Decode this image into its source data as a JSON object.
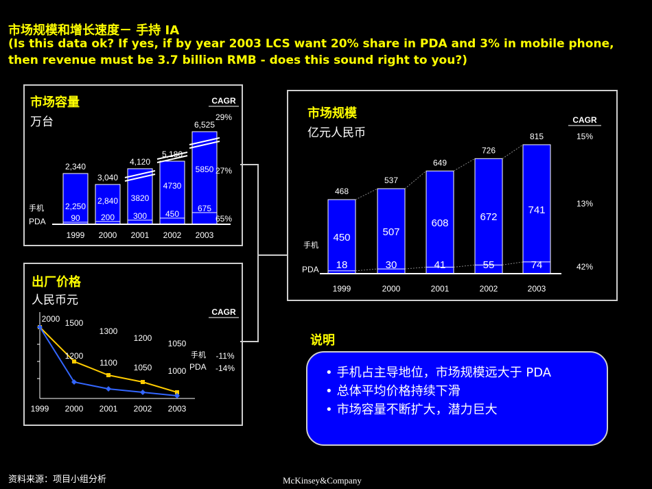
{
  "header": {
    "title": "市场规模和增长速度－ 手持 IA",
    "question": "(Is this data ok? If yes, if by year 2003 LCS want 20% share in PDA and 3% in mobile phone, then revenue must be 3.7 billion RMB - does this sound right to you?)"
  },
  "colors": {
    "accent": "#ffff00",
    "bar": "#0000ff",
    "line_phone": "#ffcc00",
    "line_pda": "#3366ff"
  },
  "chart_data": [
    {
      "type": "bar",
      "title": "市场容量",
      "subtitle": "万台",
      "categories": [
        "1999",
        "2000",
        "2001",
        "2002",
        "2003"
      ],
      "totals": [
        "2,340",
        "3,040",
        "4,120",
        "5,180",
        "6,525"
      ],
      "series": [
        {
          "name": "手机",
          "values": [
            2250,
            2840,
            3820,
            4730,
            5850
          ],
          "labels": [
            "2,250",
            "2,840",
            "3820",
            "4730",
            "5850"
          ]
        },
        {
          "name": "PDA",
          "values": [
            90,
            200,
            300,
            450,
            675
          ],
          "labels": [
            "90",
            "200",
            "300",
            "450",
            "675"
          ]
        }
      ],
      "cagr_header": "CAGR",
      "cagr": [
        "29%",
        "27%",
        "65%"
      ]
    },
    {
      "type": "bar",
      "title": "市场规模",
      "subtitle": "亿元人民币",
      "categories": [
        "1999",
        "2000",
        "2001",
        "2002",
        "2003"
      ],
      "totals": [
        "468",
        "537",
        "649",
        "726",
        "815"
      ],
      "series": [
        {
          "name": "手机",
          "values": [
            450,
            507,
            608,
            672,
            741
          ],
          "labels": [
            "450",
            "507",
            "608",
            "672",
            "741"
          ]
        },
        {
          "name": "PDA",
          "values": [
            18,
            30,
            41,
            55,
            74
          ],
          "labels": [
            "18",
            "30",
            "41",
            "55",
            "74"
          ]
        }
      ],
      "cagr_header": "CAGR",
      "cagr": [
        "15%",
        "13%",
        "42%"
      ]
    },
    {
      "type": "line",
      "title": "出厂价格",
      "subtitle": "人民币元",
      "x": [
        "1999",
        "2000",
        "2001",
        "2002",
        "2003"
      ],
      "series": [
        {
          "name": "手机",
          "values": [
            2000,
            1500,
            1300,
            1200,
            1050
          ],
          "labels": [
            "2000",
            "1500",
            "1300",
            "1200",
            "1050"
          ]
        },
        {
          "name": "PDA",
          "values": [
            2000,
            1200,
            1100,
            1050,
            1000
          ],
          "labels": [
            "",
            "1200",
            "1100",
            "1050",
            "1000"
          ]
        }
      ],
      "cagr_header": "CAGR",
      "cagr": [
        "-11%",
        "-14%"
      ]
    }
  ],
  "notes": {
    "title": "说明",
    "items": [
      "手机占主导地位，市场规模远大于 PDA",
      "总体平均价格持续下滑",
      "市场容量不断扩大，潜力巨大"
    ]
  },
  "footer": {
    "source": "资料来源：项目小组分析",
    "brand": "McKinsey&Company"
  }
}
